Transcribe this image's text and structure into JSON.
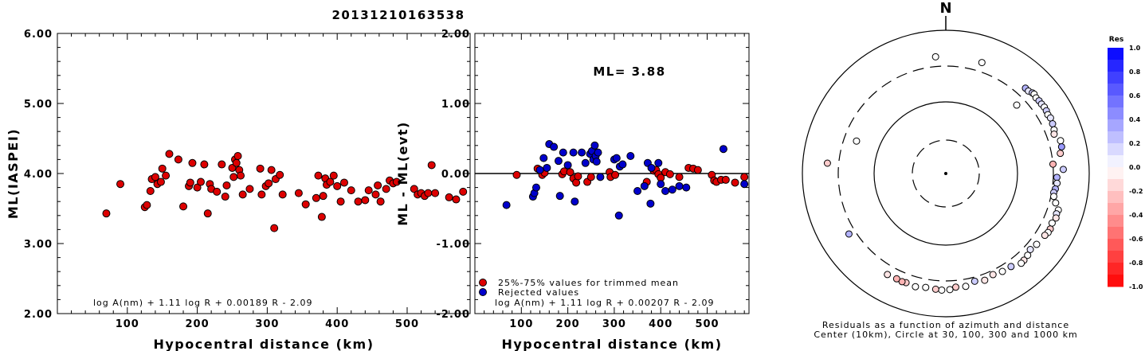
{
  "title": "20131210163538",
  "chart_data": [
    {
      "type": "scatter",
      "xlabel": "Hypocentral distance (km)",
      "ylabel": "ML(IASPEI)",
      "xlim": [
        0,
        590
      ],
      "ylim": [
        2.0,
        6.0
      ],
      "x_ticks": [
        "100",
        "200",
        "300",
        "400",
        "500"
      ],
      "y_ticks": [
        "2.00",
        "3.00",
        "4.00",
        "5.00",
        "6.00"
      ],
      "formula": "log A(nm) + 1.11 log R + 0.00189 R - 2.09",
      "series": [
        {
          "color": "#dd0000",
          "points": [
            [
              70,
              3.43
            ],
            [
              90,
              3.85
            ],
            [
              125,
              3.52
            ],
            [
              128,
              3.55
            ],
            [
              133,
              3.75
            ],
            [
              135,
              3.92
            ],
            [
              140,
              3.95
            ],
            [
              143,
              3.85
            ],
            [
              148,
              3.88
            ],
            [
              150,
              4.07
            ],
            [
              155,
              3.97
            ],
            [
              160,
              4.28
            ],
            [
              173,
              4.2
            ],
            [
              180,
              3.53
            ],
            [
              188,
              3.82
            ],
            [
              190,
              3.87
            ],
            [
              193,
              4.15
            ],
            [
              200,
              3.8
            ],
            [
              205,
              3.88
            ],
            [
              210,
              4.13
            ],
            [
              215,
              3.43
            ],
            [
              218,
              3.85
            ],
            [
              220,
              3.78
            ],
            [
              228,
              3.74
            ],
            [
              235,
              4.13
            ],
            [
              240,
              3.67
            ],
            [
              242,
              3.83
            ],
            [
              250,
              4.08
            ],
            [
              252,
              3.95
            ],
            [
              254,
              4.2
            ],
            [
              256,
              4.15
            ],
            [
              258,
              4.25
            ],
            [
              260,
              4.05
            ],
            [
              262,
              3.97
            ],
            [
              265,
              3.7
            ],
            [
              275,
              3.78
            ],
            [
              290,
              4.07
            ],
            [
              292,
              3.7
            ],
            [
              298,
              3.82
            ],
            [
              302,
              3.86
            ],
            [
              306,
              4.05
            ],
            [
              310,
              3.22
            ],
            [
              312,
              3.92
            ],
            [
              318,
              3.98
            ],
            [
              322,
              3.7
            ],
            [
              345,
              3.72
            ],
            [
              355,
              3.56
            ],
            [
              370,
              3.65
            ],
            [
              373,
              3.97
            ],
            [
              378,
              3.38
            ],
            [
              380,
              3.68
            ],
            [
              383,
              3.93
            ],
            [
              385,
              3.84
            ],
            [
              390,
              3.88
            ],
            [
              395,
              3.97
            ],
            [
              400,
              3.82
            ],
            [
              405,
              3.6
            ],
            [
              410,
              3.87
            ],
            [
              420,
              3.76
            ],
            [
              430,
              3.6
            ],
            [
              440,
              3.62
            ],
            [
              445,
              3.76
            ],
            [
              455,
              3.7
            ],
            [
              458,
              3.83
            ],
            [
              462,
              3.6
            ],
            [
              470,
              3.78
            ],
            [
              475,
              3.9
            ],
            [
              480,
              3.86
            ],
            [
              485,
              3.88
            ],
            [
              510,
              3.78
            ],
            [
              515,
              3.7
            ],
            [
              520,
              3.72
            ],
            [
              525,
              3.68
            ],
            [
              530,
              3.72
            ],
            [
              535,
              4.12
            ],
            [
              540,
              3.72
            ],
            [
              560,
              3.66
            ],
            [
              570,
              3.63
            ],
            [
              580,
              3.74
            ]
          ]
        }
      ]
    },
    {
      "type": "scatter",
      "xlabel": "Hypocentral distance (km)",
      "ylabel": "ML - ML(evt)",
      "xlim": [
        0,
        590
      ],
      "ylim": [
        -2.0,
        2.0
      ],
      "x_ticks": [
        "100",
        "200",
        "300",
        "400",
        "500"
      ],
      "y_ticks": [
        "-2.00",
        "-1.00",
        "0.00",
        "1.00",
        "2.00"
      ],
      "annotation": "ML= 3.88",
      "formula": "log A(nm) + 1.11 log R + 0.00207 R - 2.09",
      "legend": [
        {
          "label": "25%-75% values for trimmed mean",
          "color": "#dd0000"
        },
        {
          "label": "Rejected values",
          "color": "#0000cc"
        }
      ],
      "series": [
        {
          "name": "25%-75% values for trimmed mean",
          "color": "#dd0000",
          "points": [
            [
              90,
              -0.02
            ],
            [
              135,
              0.07
            ],
            [
              145,
              -0.02
            ],
            [
              150,
              0.01
            ],
            [
              188,
              -0.01
            ],
            [
              192,
              0.03
            ],
            [
              205,
              0.02
            ],
            [
              212,
              -0.07
            ],
            [
              218,
              -0.13
            ],
            [
              222,
              -0.04
            ],
            [
              242,
              -0.12
            ],
            [
              250,
              -0.05
            ],
            [
              290,
              0.02
            ],
            [
              292,
              -0.05
            ],
            [
              302,
              -0.02
            ],
            [
              370,
              -0.12
            ],
            [
              385,
              0.04
            ],
            [
              390,
              0.05
            ],
            [
              395,
              -0.01
            ],
            [
              400,
              -0.06
            ],
            [
              410,
              0.02
            ],
            [
              420,
              -0.01
            ],
            [
              440,
              -0.05
            ],
            [
              460,
              0.08
            ],
            [
              470,
              0.07
            ],
            [
              480,
              0.05
            ],
            [
              510,
              -0.02
            ],
            [
              515,
              -0.1
            ],
            [
              520,
              -0.12
            ],
            [
              530,
              -0.09
            ],
            [
              540,
              -0.09
            ],
            [
              560,
              -0.13
            ],
            [
              580,
              -0.05
            ]
          ]
        },
        {
          "name": "Rejected values",
          "color": "#0000cc",
          "points": [
            [
              68,
              -0.45
            ],
            [
              125,
              -0.33
            ],
            [
              128,
              -0.28
            ],
            [
              132,
              -0.2
            ],
            [
              140,
              0.05
            ],
            [
              148,
              0.22
            ],
            [
              155,
              0.08
            ],
            [
              160,
              0.42
            ],
            [
              170,
              0.38
            ],
            [
              180,
              0.18
            ],
            [
              183,
              -0.32
            ],
            [
              190,
              0.3
            ],
            [
              200,
              0.12
            ],
            [
              212,
              0.3
            ],
            [
              215,
              -0.4
            ],
            [
              230,
              0.3
            ],
            [
              238,
              0.15
            ],
            [
              248,
              0.28
            ],
            [
              252,
              0.32
            ],
            [
              255,
              0.2
            ],
            [
              258,
              0.4
            ],
            [
              260,
              0.25
            ],
            [
              262,
              0.17
            ],
            [
              265,
              0.3
            ],
            [
              270,
              -0.05
            ],
            [
              300,
              0.2
            ],
            [
              305,
              0.22
            ],
            [
              310,
              -0.6
            ],
            [
              312,
              0.1
            ],
            [
              318,
              0.13
            ],
            [
              335,
              0.25
            ],
            [
              350,
              -0.25
            ],
            [
              365,
              -0.18
            ],
            [
              372,
              0.15
            ],
            [
              378,
              -0.43
            ],
            [
              380,
              0.08
            ],
            [
              395,
              0.15
            ],
            [
              400,
              -0.15
            ],
            [
              410,
              -0.25
            ],
            [
              425,
              -0.23
            ],
            [
              440,
              -0.18
            ],
            [
              455,
              -0.2
            ],
            [
              535,
              0.35
            ],
            [
              580,
              -0.15
            ]
          ]
        }
      ]
    },
    {
      "type": "scatter",
      "subtype": "polar",
      "north_label": "N",
      "caption_lines": [
        "Residuals as a function of azimuth and distance",
        "Center (10km), Circle at 30, 100, 300 and 1000 km"
      ],
      "range_circles_km": [
        30,
        100,
        300,
        1000
      ],
      "colorbar": {
        "title": "Res",
        "min": -1.0,
        "max": 1.0,
        "tick_labels": [
          "1.0",
          "0.8",
          "0.6",
          "0.4",
          "0.2",
          "0.0",
          "-0.2",
          "-0.4",
          "-0.6",
          "-0.8",
          "-1.0"
        ]
      },
      "points_azimuth_distance_residual": [
        [
          46,
          250,
          0.0
        ],
        [
          18,
          480,
          0.0
        ],
        [
          43,
          480,
          0.3
        ],
        [
          45,
          480,
          0.1
        ],
        [
          47,
          510,
          0.2
        ],
        [
          48,
          520,
          0.0
        ],
        [
          50,
          500,
          0.0
        ],
        [
          52,
          510,
          0.2
        ],
        [
          54,
          510,
          0.1
        ],
        [
          56,
          520,
          0.0
        ],
        [
          58,
          515,
          0.2
        ],
        [
          60,
          500,
          0.0
        ],
        [
          62,
          515,
          0.1
        ],
        [
          65,
          500,
          0.2
        ],
        [
          68,
          480,
          0.0
        ],
        [
          70,
          450,
          -0.1
        ],
        [
          74,
          530,
          0.0
        ],
        [
          77,
          520,
          0.4
        ],
        [
          80,
          470,
          -0.2
        ],
        [
          85,
          300,
          -0.3
        ],
        [
          88,
          495,
          0.2
        ],
        [
          92,
          370,
          0.3
        ],
        [
          95,
          380,
          0.1
        ],
        [
          98,
          360,
          0.3
        ],
        [
          100,
          340,
          0.2
        ],
        [
          102,
          355,
          0.0
        ],
        [
          105,
          420,
          0.0
        ],
        [
          108,
          510,
          0.0
        ],
        [
          110,
          500,
          0.1
        ],
        [
          112,
          520,
          -0.1
        ],
        [
          115,
          490,
          0.0
        ],
        [
          118,
          510,
          -0.2
        ],
        [
          120,
          505,
          0.0
        ],
        [
          122,
          480,
          -0.1
        ],
        [
          128,
          450,
          0.0
        ],
        [
          132,
          420,
          0.1
        ],
        [
          135,
          460,
          0.0
        ],
        [
          138,
          480,
          -0.1
        ],
        [
          140,
          490,
          0.0
        ],
        [
          145,
          420,
          0.2
        ],
        [
          150,
          410,
          0.0
        ],
        [
          155,
          380,
          -0.1
        ],
        [
          160,
          420,
          -0.1
        ],
        [
          165,
          380,
          0.2
        ],
        [
          170,
          440,
          0.0
        ],
        [
          175,
          430,
          -0.2
        ],
        [
          178,
          470,
          0.0
        ],
        [
          182,
          480,
          0.0
        ],
        [
          185,
          470,
          -0.2
        ],
        [
          190,
          460,
          0.0
        ],
        [
          195,
          490,
          0.0
        ],
        [
          200,
          470,
          -0.2
        ],
        [
          202,
          480,
          -0.3
        ],
        [
          205,
          470,
          -0.3
        ],
        [
          210,
          480,
          -0.1
        ],
        [
          238,
          430,
          0.3
        ],
        [
          275,
          520,
          -0.2
        ],
        [
          290,
          230,
          0.0
        ],
        [
          355,
          490,
          0.0
        ]
      ]
    }
  ]
}
